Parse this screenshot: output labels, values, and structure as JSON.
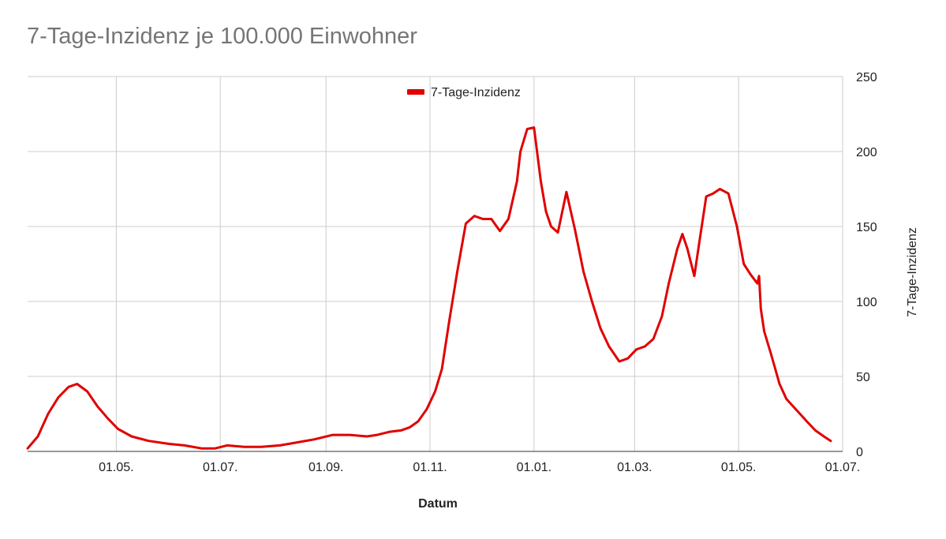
{
  "chart_data": {
    "type": "line",
    "title": "7-Tage-Inzidenz je 100.000 Einwohner",
    "xlabel": "Datum",
    "ylabel": "7-Tage-Inzidenz",
    "ylim": [
      0,
      250
    ],
    "yticks": [
      0,
      50,
      100,
      150,
      200,
      250
    ],
    "y_axis_side": "right",
    "grid": true,
    "legend_position": "top",
    "line_color": "#e00000",
    "x_range": [
      "2020-03-10",
      "2021-07-01"
    ],
    "x_ticks": [
      {
        "date": "2020-05-01",
        "label": "01.05."
      },
      {
        "date": "2020-07-01",
        "label": "01.07."
      },
      {
        "date": "2020-09-01",
        "label": "01.09."
      },
      {
        "date": "2020-11-01",
        "label": "01.11."
      },
      {
        "date": "2021-01-01",
        "label": "01.01."
      },
      {
        "date": "2021-03-01",
        "label": "01.03."
      },
      {
        "date": "2021-05-01",
        "label": "01.05."
      },
      {
        "date": "2021-07-01",
        "label": "01.07."
      }
    ],
    "series": [
      {
        "name": "7-Tage-Inzidenz",
        "x": [
          "2020-03-10",
          "2020-03-16",
          "2020-03-22",
          "2020-03-28",
          "2020-04-03",
          "2020-04-08",
          "2020-04-14",
          "2020-04-20",
          "2020-04-26",
          "2020-05-02",
          "2020-05-10",
          "2020-05-20",
          "2020-06-01",
          "2020-06-10",
          "2020-06-20",
          "2020-06-28",
          "2020-07-05",
          "2020-07-15",
          "2020-07-25",
          "2020-08-05",
          "2020-08-15",
          "2020-08-25",
          "2020-09-05",
          "2020-09-15",
          "2020-09-25",
          "2020-10-01",
          "2020-10-08",
          "2020-10-15",
          "2020-10-20",
          "2020-10-25",
          "2020-10-30",
          "2020-11-04",
          "2020-11-08",
          "2020-11-12",
          "2020-11-17",
          "2020-11-22",
          "2020-11-27",
          "2020-12-02",
          "2020-12-07",
          "2020-12-12",
          "2020-12-17",
          "2020-12-22",
          "2020-12-24",
          "2020-12-28",
          "2021-01-01",
          "2021-01-05",
          "2021-01-08",
          "2021-01-11",
          "2021-01-15",
          "2021-01-20",
          "2021-01-25",
          "2021-01-30",
          "2021-02-04",
          "2021-02-09",
          "2021-02-14",
          "2021-02-20",
          "2021-02-25",
          "2021-03-02",
          "2021-03-07",
          "2021-03-12",
          "2021-03-17",
          "2021-03-21",
          "2021-03-26",
          "2021-03-29",
          "2021-04-01",
          "2021-04-05",
          "2021-04-08",
          "2021-04-12",
          "2021-04-16",
          "2021-04-20",
          "2021-04-25",
          "2021-04-30",
          "2021-05-04",
          "2021-05-08",
          "2021-05-12",
          "2021-05-13",
          "2021-05-14",
          "2021-05-16",
          "2021-05-20",
          "2021-05-25",
          "2021-05-29",
          "2021-06-02",
          "2021-06-06",
          "2021-06-10",
          "2021-06-15",
          "2021-06-20",
          "2021-06-24"
        ],
        "values": [
          2,
          10,
          25,
          36,
          43,
          45,
          40,
          30,
          22,
          15,
          10,
          7,
          5,
          4,
          2,
          2,
          4,
          3,
          3,
          4,
          6,
          8,
          11,
          11,
          10,
          11,
          13,
          14,
          16,
          20,
          28,
          40,
          55,
          85,
          120,
          152,
          157,
          155,
          155,
          147,
          155,
          180,
          200,
          215,
          216,
          180,
          160,
          150,
          146,
          173,
          148,
          120,
          100,
          82,
          70,
          60,
          62,
          68,
          70,
          75,
          90,
          112,
          135,
          145,
          135,
          117,
          140,
          170,
          172,
          175,
          172,
          150,
          125,
          118,
          112,
          117,
          95,
          80,
          65,
          45,
          35,
          30,
          25,
          20,
          14,
          10,
          7
        ]
      }
    ]
  }
}
